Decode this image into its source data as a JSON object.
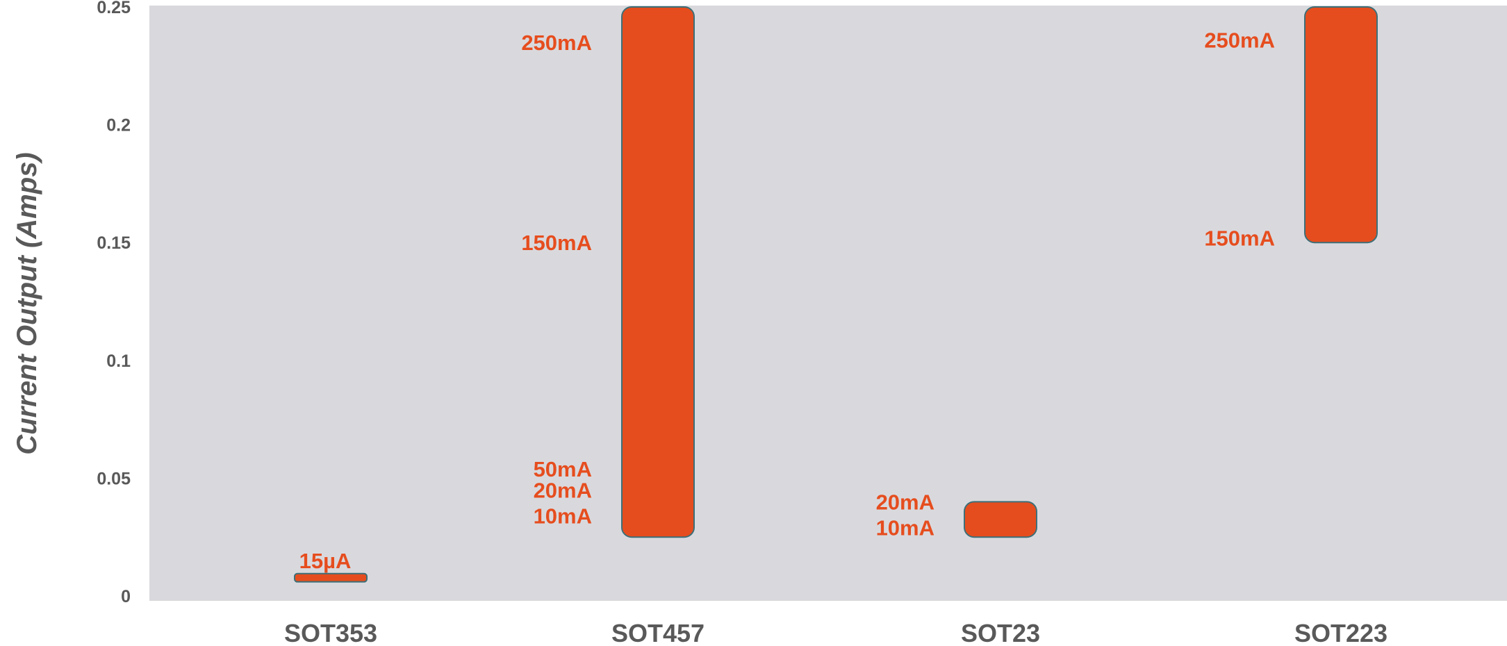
{
  "chart_data": {
    "type": "bar",
    "subtype": "floating-range",
    "ylabel": "Current Output (Amps)",
    "ylim": [
      0,
      0.25
    ],
    "y_ticks": [
      "0",
      "0.05",
      "0.1",
      "0.15",
      "0.2",
      "0.25"
    ],
    "y_tick_values": [
      0,
      0.05,
      0.1,
      0.15,
      0.2,
      0.25
    ],
    "categories": [
      "SOT353",
      "SOT457",
      "SOT23",
      "SOT223"
    ],
    "ranges": [
      {
        "category": "SOT353",
        "low": 0.006,
        "high": 0.0095,
        "labels": [
          {
            "text": "15µA",
            "value": 0.015
          }
        ]
      },
      {
        "category": "SOT457",
        "low": 0.025,
        "high": 0.25,
        "labels": [
          {
            "text": "250mA",
            "value": 0.235
          },
          {
            "text": "150mA",
            "value": 0.15
          },
          {
            "text": "50mA",
            "value": 0.054
          },
          {
            "text": "20mA",
            "value": 0.045
          },
          {
            "text": "10mA",
            "value": 0.034
          }
        ]
      },
      {
        "category": "SOT23",
        "low": 0.025,
        "high": 0.04,
        "labels": [
          {
            "text": "20mA",
            "value": 0.04
          },
          {
            "text": "10mA",
            "value": 0.029
          }
        ]
      },
      {
        "category": "SOT223",
        "low": 0.15,
        "high": 0.25,
        "labels": [
          {
            "text": "250mA",
            "value": 0.236
          },
          {
            "text": "150mA",
            "value": 0.152
          }
        ]
      }
    ],
    "grid": false,
    "legend": "none",
    "colors": {
      "bar": "#e64d1e",
      "bar_border": "#3d6f78",
      "plot_bg": "#d9d9dd",
      "text": "#595959",
      "label": "#e64d1e"
    }
  }
}
